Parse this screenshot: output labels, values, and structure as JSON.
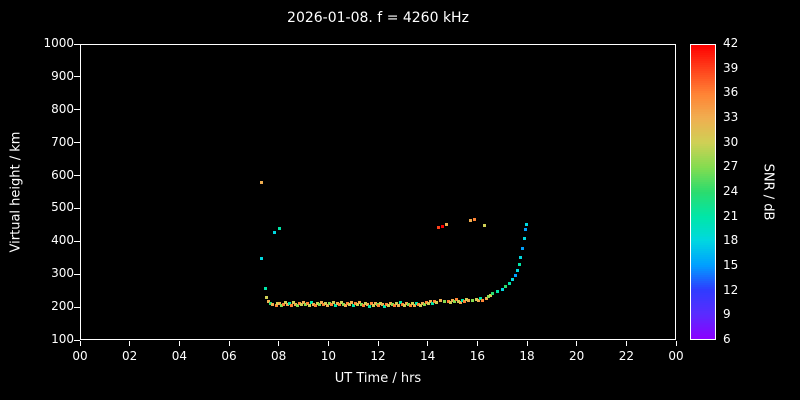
{
  "title": "2026-01-08. f = 4260 kHz",
  "axes": {
    "xlabel": "UT Time / hrs",
    "ylabel": "Virtual height / km",
    "x_tick_values": [
      0,
      2,
      4,
      6,
      8,
      10,
      12,
      14,
      16,
      18,
      20,
      22,
      24
    ],
    "x_tick_labels": [
      "00",
      "02",
      "04",
      "06",
      "08",
      "10",
      "12",
      "14",
      "16",
      "18",
      "20",
      "22",
      "00"
    ],
    "y_tick_values": [
      100,
      200,
      300,
      400,
      500,
      600,
      700,
      800,
      900,
      1000
    ],
    "y_tick_labels": [
      "100",
      "200",
      "300",
      "400",
      "500",
      "600",
      "700",
      "800",
      "900",
      "1000"
    ]
  },
  "colorbar": {
    "label": "SNR / dB",
    "min": 6,
    "max": 42,
    "tick_values": [
      6,
      9,
      12,
      15,
      18,
      21,
      24,
      27,
      30,
      33,
      36,
      39,
      42
    ],
    "stops": [
      [
        6,
        "#8b00ff"
      ],
      [
        9,
        "#5a2bff"
      ],
      [
        12,
        "#2e3cff"
      ],
      [
        15,
        "#00a0ff"
      ],
      [
        18,
        "#00d8e0"
      ],
      [
        21,
        "#00e6a8"
      ],
      [
        24,
        "#2bdc6e"
      ],
      [
        27,
        "#84dc50"
      ],
      [
        30,
        "#cfd055"
      ],
      [
        33,
        "#f0ae50"
      ],
      [
        36,
        "#ff8435"
      ],
      [
        39,
        "#ff421c"
      ],
      [
        42,
        "#ff0000"
      ]
    ]
  },
  "chart_data": {
    "type": "scatter",
    "title": "2026-01-08. f = 4260 kHz",
    "xlabel": "UT Time / hrs",
    "ylabel": "Virtual height / km",
    "zlabel": "SNR / dB",
    "xlim": [
      0,
      24
    ],
    "ylim": [
      100,
      1000
    ],
    "zlim": [
      6,
      42
    ],
    "grid": false,
    "background": "#000000",
    "points_format": "[ut_hours, virtual_height_km, snr_db]",
    "points": [
      [
        7.32,
        580,
        33
      ],
      [
        7.32,
        348,
        18
      ],
      [
        7.45,
        258,
        21
      ],
      [
        7.52,
        228,
        30
      ],
      [
        7.6,
        218,
        33
      ],
      [
        7.68,
        212,
        24
      ],
      [
        7.76,
        208,
        33
      ],
      [
        7.84,
        428,
        18
      ],
      [
        7.9,
        206,
        36
      ],
      [
        7.95,
        212,
        30
      ],
      [
        8.02,
        440,
        21
      ],
      [
        8.05,
        210,
        33
      ],
      [
        8.12,
        205,
        27
      ],
      [
        8.2,
        208,
        36
      ],
      [
        8.28,
        214,
        30
      ],
      [
        8.36,
        207,
        33
      ],
      [
        8.44,
        211,
        21
      ],
      [
        8.52,
        206,
        36
      ],
      [
        8.6,
        213,
        30
      ],
      [
        8.68,
        208,
        33
      ],
      [
        8.76,
        205,
        27
      ],
      [
        8.84,
        212,
        36
      ],
      [
        8.92,
        209,
        30
      ],
      [
        9.0,
        214,
        33
      ],
      [
        9.08,
        207,
        27
      ],
      [
        9.16,
        211,
        36
      ],
      [
        9.24,
        205,
        30
      ],
      [
        9.32,
        213,
        21
      ],
      [
        9.4,
        208,
        33
      ],
      [
        9.48,
        206,
        36
      ],
      [
        9.56,
        212,
        30
      ],
      [
        9.64,
        209,
        27
      ],
      [
        9.72,
        214,
        33
      ],
      [
        9.8,
        207,
        36
      ],
      [
        9.88,
        211,
        30
      ],
      [
        9.96,
        205,
        33
      ],
      [
        10.04,
        212,
        27
      ],
      [
        10.12,
        208,
        36
      ],
      [
        10.2,
        214,
        30
      ],
      [
        10.28,
        206,
        21
      ],
      [
        10.36,
        211,
        33
      ],
      [
        10.44,
        207,
        36
      ],
      [
        10.52,
        213,
        30
      ],
      [
        10.6,
        209,
        27
      ],
      [
        10.68,
        205,
        33
      ],
      [
        10.76,
        212,
        36
      ],
      [
        10.84,
        208,
        30
      ],
      [
        10.92,
        214,
        33
      ],
      [
        11.0,
        206,
        21
      ],
      [
        11.08,
        211,
        36
      ],
      [
        11.16,
        207,
        30
      ],
      [
        11.24,
        213,
        33
      ],
      [
        11.32,
        209,
        27
      ],
      [
        11.4,
        205,
        36
      ],
      [
        11.48,
        212,
        30
      ],
      [
        11.56,
        208,
        33
      ],
      [
        11.64,
        203,
        21
      ],
      [
        11.72,
        210,
        36
      ],
      [
        11.8,
        206,
        30
      ],
      [
        11.88,
        212,
        33
      ],
      [
        11.96,
        208,
        27
      ],
      [
        12.04,
        204,
        36
      ],
      [
        12.12,
        211,
        30
      ],
      [
        12.2,
        207,
        33
      ],
      [
        12.28,
        203,
        21
      ],
      [
        12.36,
        209,
        36
      ],
      [
        12.44,
        205,
        30
      ],
      [
        12.52,
        212,
        33
      ],
      [
        12.6,
        208,
        27
      ],
      [
        12.68,
        204,
        36
      ],
      [
        12.76,
        210,
        30
      ],
      [
        12.84,
        206,
        33
      ],
      [
        12.92,
        213,
        21
      ],
      [
        13.0,
        209,
        36
      ],
      [
        13.08,
        205,
        30
      ],
      [
        13.16,
        211,
        33
      ],
      [
        13.24,
        207,
        27
      ],
      [
        13.32,
        204,
        36
      ],
      [
        13.4,
        210,
        30
      ],
      [
        13.48,
        206,
        33
      ],
      [
        13.56,
        212,
        21
      ],
      [
        13.64,
        208,
        36
      ],
      [
        13.72,
        205,
        30
      ],
      [
        13.8,
        211,
        33
      ],
      [
        13.88,
        207,
        27
      ],
      [
        13.96,
        214,
        36
      ],
      [
        14.04,
        210,
        30
      ],
      [
        14.12,
        216,
        33
      ],
      [
        14.2,
        212,
        21
      ],
      [
        14.28,
        218,
        36
      ],
      [
        14.36,
        214,
        30
      ],
      [
        14.44,
        442,
        39
      ],
      [
        14.52,
        220,
        33
      ],
      [
        14.6,
        446,
        42
      ],
      [
        14.68,
        216,
        27
      ],
      [
        14.76,
        450,
        33
      ],
      [
        14.84,
        218,
        36
      ],
      [
        14.92,
        214,
        30
      ],
      [
        15.0,
        220,
        33
      ],
      [
        15.08,
        216,
        27
      ],
      [
        15.16,
        222,
        36
      ],
      [
        15.24,
        218,
        30
      ],
      [
        15.32,
        215,
        33
      ],
      [
        15.4,
        221,
        21
      ],
      [
        15.48,
        217,
        36
      ],
      [
        15.56,
        223,
        30
      ],
      [
        15.64,
        219,
        33
      ],
      [
        15.72,
        462,
        33
      ],
      [
        15.8,
        221,
        27
      ],
      [
        15.88,
        466,
        36
      ],
      [
        15.96,
        223,
        30
      ],
      [
        16.04,
        219,
        33
      ],
      [
        16.12,
        225,
        21
      ],
      [
        16.2,
        221,
        36
      ],
      [
        16.28,
        448,
        30
      ],
      [
        16.36,
        227,
        33
      ],
      [
        16.44,
        231,
        27
      ],
      [
        16.52,
        235,
        30
      ],
      [
        16.6,
        240,
        24
      ],
      [
        16.8,
        248,
        21
      ],
      [
        17.0,
        255,
        18
      ],
      [
        17.15,
        262,
        24
      ],
      [
        17.3,
        272,
        21
      ],
      [
        17.42,
        283,
        18
      ],
      [
        17.52,
        296,
        15
      ],
      [
        17.6,
        312,
        18
      ],
      [
        17.68,
        330,
        21
      ],
      [
        17.75,
        352,
        18
      ],
      [
        17.82,
        378,
        15
      ],
      [
        17.88,
        408,
        18
      ],
      [
        17.94,
        436,
        15
      ],
      [
        17.98,
        452,
        18
      ]
    ]
  }
}
